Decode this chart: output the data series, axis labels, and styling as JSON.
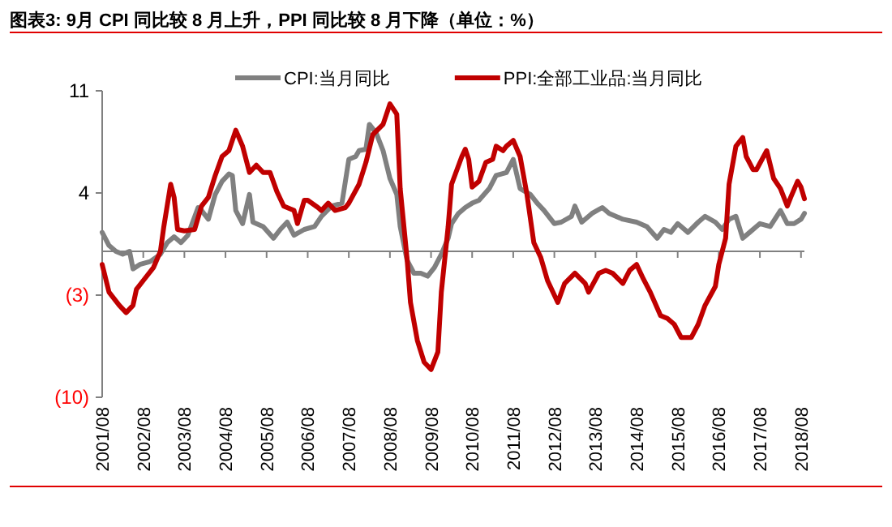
{
  "chart_data": {
    "type": "line",
    "title": "图表3:  9月 CPI 同比较 8 月上升，PPI 同比较 8 月下降（单位：%）",
    "xlim": [
      "2001-08",
      "2018-09"
    ],
    "xticks": [
      {
        "value": "2001-08",
        "label": "2001/08"
      },
      {
        "value": "2002-08",
        "label": "2002/08"
      },
      {
        "value": "2003-08",
        "label": "2003/08"
      },
      {
        "value": "2004-08",
        "label": "2004/08"
      },
      {
        "value": "2005-08",
        "label": "2005/08"
      },
      {
        "value": "2006-08",
        "label": "2006/08"
      },
      {
        "value": "2007-08",
        "label": "2007/08"
      },
      {
        "value": "2008-08",
        "label": "2008/08"
      },
      {
        "value": "2009-08",
        "label": "2009/08"
      },
      {
        "value": "2010-08",
        "label": "2010/08"
      },
      {
        "value": "2011-08",
        "label": "2011/08"
      },
      {
        "value": "2012-08",
        "label": "2012/08"
      },
      {
        "value": "2013-08",
        "label": "2013/08"
      },
      {
        "value": "2014-08",
        "label": "2014/08"
      },
      {
        "value": "2015-08",
        "label": "2015/08"
      },
      {
        "value": "2016-08",
        "label": "2016/08"
      },
      {
        "value": "2017-08",
        "label": "2017/08"
      },
      {
        "value": "2018-08",
        "label": "2018/08"
      }
    ],
    "ylim": [
      -10,
      11
    ],
    "yticks": [
      {
        "value": -10,
        "label": "(10)"
      },
      {
        "value": -3,
        "label": "(3)"
      },
      4,
      11
    ],
    "legend": "top",
    "grid": false,
    "marker": "none",
    "line_style": "solid",
    "series": [
      {
        "name": "CPI:当月同比",
        "color": "#808080",
        "x": [
          "2001-08",
          "2001-10",
          "2001-12",
          "2002-02",
          "2002-04",
          "2002-05",
          "2002-07",
          "2002-10",
          "2003-01",
          "2003-03",
          "2003-05",
          "2003-07",
          "2003-09",
          "2003-12",
          "2004-01",
          "2004-03",
          "2004-05",
          "2004-07",
          "2004-09",
          "2004-10",
          "2004-11",
          "2005-01",
          "2005-03",
          "2005-04",
          "2005-07",
          "2005-10",
          "2005-12",
          "2006-02",
          "2006-04",
          "2006-07",
          "2006-10",
          "2006-12",
          "2007-03",
          "2007-06",
          "2007-08",
          "2007-10",
          "2007-11",
          "2008-01",
          "2008-02",
          "2008-04",
          "2008-06",
          "2008-08",
          "2008-10",
          "2008-11",
          "2009-01",
          "2009-03",
          "2009-05",
          "2009-07",
          "2009-09",
          "2009-11",
          "2010-01",
          "2010-02",
          "2010-04",
          "2010-06",
          "2010-08",
          "2010-10",
          "2011-01",
          "2011-03",
          "2011-06",
          "2011-08",
          "2011-10",
          "2012-01",
          "2012-03",
          "2012-05",
          "2012-08",
          "2012-10",
          "2013-01",
          "2013-02",
          "2013-04",
          "2013-07",
          "2013-10",
          "2013-12",
          "2014-04",
          "2014-08",
          "2014-11",
          "2015-02",
          "2015-04",
          "2015-06",
          "2015-08",
          "2015-11",
          "2016-02",
          "2016-04",
          "2016-07",
          "2016-09",
          "2016-11",
          "2017-01",
          "2017-03",
          "2017-05",
          "2017-08",
          "2017-11",
          "2018-02",
          "2018-04",
          "2018-06",
          "2018-08",
          "2018-09"
        ],
        "values": [
          1.3,
          0.4,
          0,
          -0.2,
          0,
          -1.2,
          -0.9,
          -0.7,
          -0.2,
          0.6,
          1.0,
          0.6,
          1.1,
          3.0,
          2.8,
          2.2,
          3.9,
          4.8,
          5.3,
          5.2,
          2.8,
          1.9,
          3.9,
          2.0,
          1.7,
          0.9,
          1.5,
          2.0,
          1.1,
          1.5,
          1.7,
          2.4,
          3.1,
          3.3,
          6.3,
          6.5,
          6.9,
          7.0,
          8.7,
          8.1,
          6.9,
          5.0,
          3.9,
          1.7,
          -0.6,
          -1.5,
          -1.5,
          -1.7,
          -1.1,
          -0.2,
          0.9,
          1.9,
          2.6,
          3.0,
          3.3,
          3.5,
          4.3,
          5.2,
          5.4,
          6.3,
          4.3,
          3.9,
          3.3,
          2.8,
          1.9,
          2.0,
          2.4,
          3.1,
          2.0,
          2.6,
          3.0,
          2.6,
          2.2,
          2.0,
          1.7,
          0.9,
          1.5,
          1.3,
          1.9,
          1.3,
          2.0,
          2.4,
          2.0,
          1.5,
          2.2,
          2.4,
          0.9,
          1.3,
          1.9,
          1.7,
          2.8,
          1.9,
          1.9,
          2.2,
          2.6
        ]
      },
      {
        "name": "PPI:全部工业品:当月同比",
        "color": "#c00000",
        "x": [
          "2001-08",
          "2001-10",
          "2002-01",
          "2002-03",
          "2002-05",
          "2002-06",
          "2002-08",
          "2002-11",
          "2003-01",
          "2003-02",
          "2003-04",
          "2003-05",
          "2003-06",
          "2003-08",
          "2003-11",
          "2004-01",
          "2004-03",
          "2004-05",
          "2004-07",
          "2004-09",
          "2004-11",
          "2005-01",
          "2005-03",
          "2005-05",
          "2005-07",
          "2005-09",
          "2005-11",
          "2006-01",
          "2006-04",
          "2006-05",
          "2006-07",
          "2006-08",
          "2006-11",
          "2006-12",
          "2007-02",
          "2007-04",
          "2007-07",
          "2007-08",
          "2007-11",
          "2008-01",
          "2008-03",
          "2008-06",
          "2008-08",
          "2008-10",
          "2008-11",
          "2009-01",
          "2009-02",
          "2009-04",
          "2009-06",
          "2009-08",
          "2009-10",
          "2009-11",
          "2010-01",
          "2010-02",
          "2010-05",
          "2010-06",
          "2010-07",
          "2010-08",
          "2010-10",
          "2010-12",
          "2011-02",
          "2011-03",
          "2011-05",
          "2011-06",
          "2011-08",
          "2011-10",
          "2011-12",
          "2012-02",
          "2012-04",
          "2012-06",
          "2012-09",
          "2012-11",
          "2013-02",
          "2013-05",
          "2013-06",
          "2013-09",
          "2013-11",
          "2014-01",
          "2014-04",
          "2014-06",
          "2014-08",
          "2014-10",
          "2014-12",
          "2015-03",
          "2015-05",
          "2015-07",
          "2015-09",
          "2015-12",
          "2016-02",
          "2016-04",
          "2016-07",
          "2016-08",
          "2016-10",
          "2016-11",
          "2017-01",
          "2017-03",
          "2017-04",
          "2017-06",
          "2017-07",
          "2017-10",
          "2017-12",
          "2018-02",
          "2018-04",
          "2018-05",
          "2018-07",
          "2018-08",
          "2018-09"
        ],
        "values": [
          -0.9,
          -2.8,
          -3.7,
          -4.2,
          -3.7,
          -2.6,
          -2.0,
          -1.1,
          0,
          1.7,
          4.6,
          3.7,
          1.5,
          1.4,
          1.5,
          3.1,
          3.7,
          5.2,
          6.5,
          6.9,
          8.3,
          7.2,
          5.4,
          5.9,
          5.4,
          5.4,
          4.1,
          3.1,
          2.8,
          1.9,
          3.5,
          3.5,
          3.0,
          2.8,
          3.3,
          2.8,
          3.0,
          3.3,
          4.6,
          6.1,
          8.0,
          8.7,
          10.1,
          9.4,
          4.3,
          -0.5,
          -3.5,
          -6.1,
          -7.6,
          -8.1,
          -6.9,
          -2.8,
          1.7,
          4.6,
          6.5,
          7.0,
          6.3,
          4.4,
          4.8,
          6.1,
          6.3,
          7.2,
          6.9,
          7.2,
          7.6,
          6.5,
          3.9,
          0.6,
          -0.4,
          -2.0,
          -3.5,
          -2.2,
          -1.5,
          -2.2,
          -2.8,
          -1.5,
          -1.3,
          -1.5,
          -2.2,
          -1.3,
          -0.9,
          -1.9,
          -2.8,
          -4.4,
          -4.6,
          -5.0,
          -5.9,
          -5.9,
          -5.0,
          -3.7,
          -2.4,
          -0.9,
          0.9,
          4.6,
          7.2,
          7.8,
          6.5,
          5.6,
          5.6,
          6.9,
          5.0,
          4.3,
          3.1,
          3.7,
          4.8,
          4.4,
          3.6
        ]
      }
    ]
  }
}
